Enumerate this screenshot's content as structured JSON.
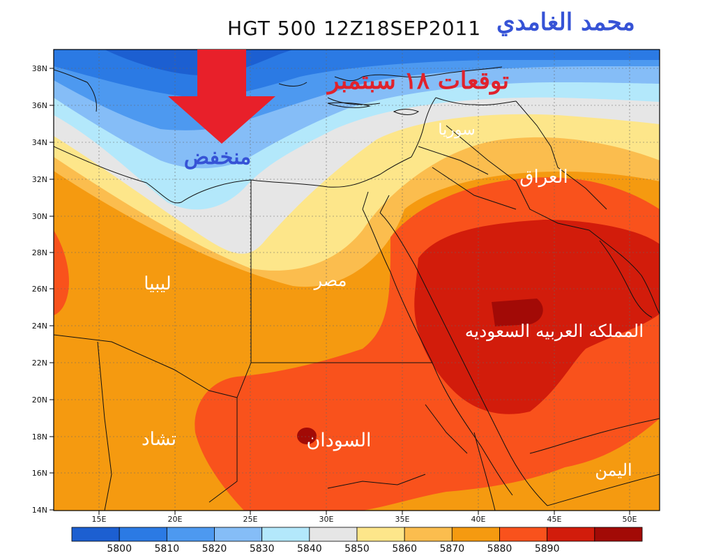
{
  "title": "HGT 500 12Z18SEP2011",
  "author": "محمد الغامدي",
  "forecast_label": "توقعات ١٨ سبتمبر",
  "low_label": "منخفض",
  "country_labels": {
    "syria": "سوريا",
    "iraq": "العراق",
    "libya": "ليبيا",
    "egypt": "مصر",
    "saudi": "المملكه العربيه السعوديه",
    "chad": "تشاد",
    "sudan": "السودان",
    "yemen": "اليمن"
  },
  "axes": {
    "lat_ticks": [
      "38N",
      "36N",
      "34N",
      "32N",
      "30N",
      "28N",
      "26N",
      "24N",
      "22N",
      "20N",
      "18N",
      "16N",
      "14N"
    ],
    "lon_ticks": [
      "15E",
      "20E",
      "25E",
      "30E",
      "35E",
      "40E",
      "45E",
      "50E"
    ]
  },
  "colorbar": {
    "ticks": [
      "5800",
      "5810",
      "5820",
      "5830",
      "5840",
      "5850",
      "5860",
      "5870",
      "5880",
      "5890"
    ],
    "colors": [
      "#1c5fd1",
      "#2b7ae4",
      "#4d99f0",
      "#85bdf7",
      "#b3e8fb",
      "#e6e6e6",
      "#fde68a",
      "#fbbd4e",
      "#f59a10",
      "#f9521c",
      "#d21c0b",
      "#a20a06"
    ]
  },
  "colors": {
    "arrow": "#e8202a",
    "forecast_text": "#e0222c",
    "low_text": "#3653d6",
    "author_text": "#3653d6"
  }
}
